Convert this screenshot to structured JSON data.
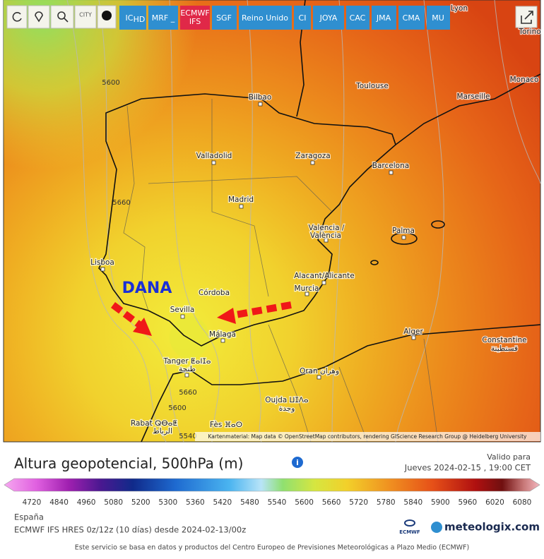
{
  "toolbar": {
    "city_icon": "CITY",
    "buttons": [
      {
        "text": "IC",
        "sub": "HD"
      },
      {
        "text": "MRF _"
      },
      {
        "text": "ECMWF",
        "sub": "IFS"
      },
      {
        "text": "SGF"
      },
      {
        "text": "Reino Unido"
      },
      {
        "text": "CI"
      },
      {
        "text": "JOYA"
      },
      {
        "text": "CAC"
      },
      {
        "text": "JMA"
      },
      {
        "text": "CMA"
      },
      {
        "text": "MU"
      }
    ]
  },
  "map": {
    "cities": [
      "Lyon",
      "Torino",
      "Monaco",
      "Toulouse",
      "Marseille",
      "Bilbao",
      "Valladolid",
      "Zaragoza",
      "Barcelona",
      "Madrid",
      "Palma",
      "Valencia /",
      "València",
      "Lisboa",
      "Alacant/Alicante",
      "Murcia",
      "Córdoba",
      "Sevilla",
      "Málaga",
      "Alger",
      "Constantine",
      "قسنطينة",
      "Tanger ⵟⴰⵏⵊⴰ",
      "طنجة",
      "Oran وهران",
      "Oujda ⵡⵊⴷⴰ",
      "وجدة",
      "Rabat ⵕⴱⴰⵟ",
      "الرباط",
      "Fès ⴼⴰⵙ"
    ],
    "contour_labels": [
      "5600",
      "5660",
      "5660",
      "5600",
      "5540"
    ],
    "annotation": "DANA",
    "attribution": "Kartenmaterial: Map data © OpenStreetMap contributors, rendering GIScience Research Group @ Heidelberg University"
  },
  "legend": {
    "title": "Altura geopotencial, 500hPa (m)",
    "valid_label": "Valido para",
    "valid_time": "Jueves 2024-02-15 , 19:00 CET",
    "ticks": [
      4720,
      4840,
      4960,
      5080,
      5200,
      5300,
      5360,
      5420,
      5480,
      5540,
      5600,
      5660,
      5720,
      5780,
      5840,
      5900,
      5960,
      6020,
      6080
    ]
  },
  "footer": {
    "region": "España",
    "model": "ECMWF IFS HRES 0z/12z (10 días) desde 2024-02-13/00z",
    "source": "Este servicio se basa en datos y productos del Centro Europeo de Previsiones Meteorológicas a Plazo Medio (ECMWF)",
    "ecmwf_logo": "ECMWF",
    "brand": "meteologix.com"
  }
}
